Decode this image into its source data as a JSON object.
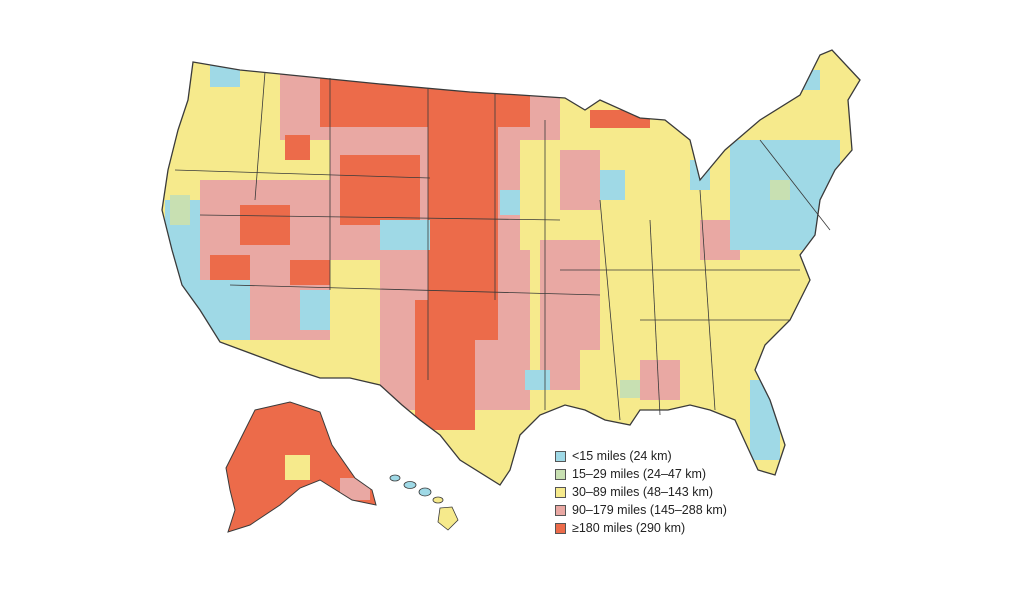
{
  "legend": {
    "items": [
      {
        "label": "<15 miles (24 km)",
        "color": "#9fd9e6"
      },
      {
        "label": "15–29 miles (24–47 km)",
        "color": "#c8e0b2"
      },
      {
        "label": "30–89 miles (48–143 km)",
        "color": "#f6ea8c"
      },
      {
        "label": "90–179 miles (145–288 km)",
        "color": "#e9a8a3"
      },
      {
        "label": "≥180 miles (290 km)",
        "color": "#ec6b4a"
      }
    ]
  },
  "map": {
    "region": "United States (contiguous US, Alaska, Hawaii)",
    "unit": "county",
    "border_color": "#3a3a3a"
  }
}
